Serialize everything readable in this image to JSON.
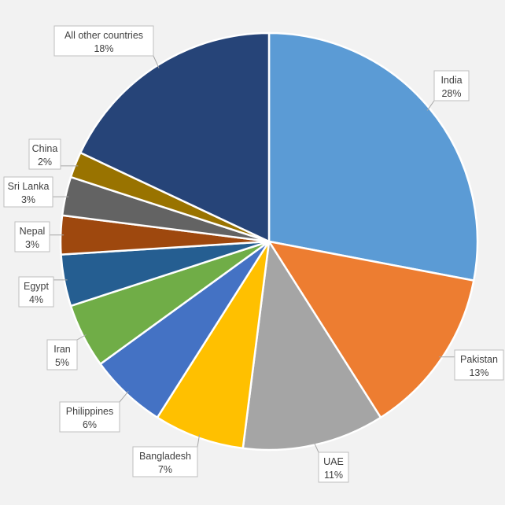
{
  "chart_data": {
    "type": "pie",
    "title": "",
    "start_angle_deg": 0,
    "direction": "clockwise",
    "slices": [
      {
        "label": "India",
        "value": 28,
        "display": "28%",
        "color": "#5b9bd5"
      },
      {
        "label": "Pakistan",
        "value": 13,
        "display": "13%",
        "color": "#ed7d31"
      },
      {
        "label": "UAE",
        "value": 11,
        "display": "11%",
        "color": "#a5a5a5"
      },
      {
        "label": "Bangladesh",
        "value": 7,
        "display": "7%",
        "color": "#ffc000"
      },
      {
        "label": "Philippines",
        "value": 6,
        "display": "6%",
        "color": "#4472c4"
      },
      {
        "label": "Iran",
        "value": 5,
        "display": "5%",
        "color": "#70ad47"
      },
      {
        "label": "Egypt",
        "value": 4,
        "display": "4%",
        "color": "#255e91"
      },
      {
        "label": "Nepal",
        "value": 3,
        "display": "3%",
        "color": "#9e480e"
      },
      {
        "label": "Sri Lanka",
        "value": 3,
        "display": "3%",
        "color": "#636363"
      },
      {
        "label": "China",
        "value": 2,
        "display": "2%",
        "color": "#997300"
      },
      {
        "label": "All other countries",
        "value": 18,
        "display": "18%",
        "color": "#264478"
      }
    ]
  }
}
